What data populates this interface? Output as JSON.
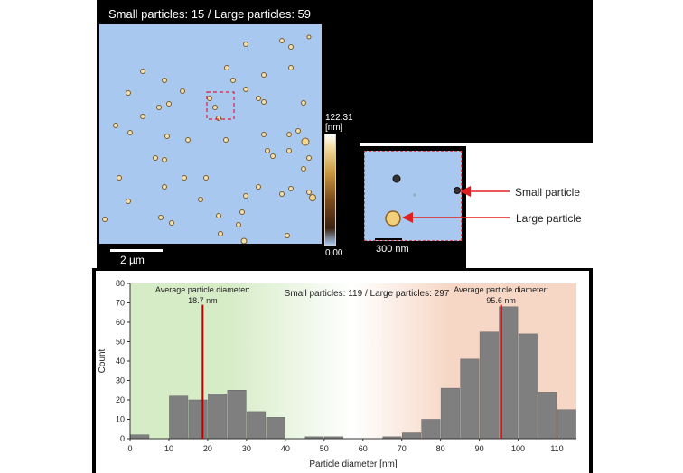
{
  "afm": {
    "title": "Small particles: 15 / Large particles: 59",
    "scale_label": "2 µm",
    "colorbar_max": "122.31",
    "colorbar_unit": "[nm]",
    "colorbar_min": "0.00"
  },
  "zoom": {
    "scale_label": "300 nm",
    "small_label": "Small particle",
    "large_label": "Large particle"
  },
  "colors": {
    "arrow": "#e02020",
    "bar": "#7f7f7f",
    "mean_line": "#c00000",
    "green_band": "#d6ecc6",
    "orange_band": "#f6d6c4",
    "substrate": "#a8c8f0"
  },
  "chart_data": {
    "type": "bar",
    "title": "Small particles: 119 / Large particles: 297",
    "xlabel": "Particle diameter [nm]",
    "ylabel": "Count",
    "xlim": [
      0,
      115
    ],
    "ylim": [
      0,
      80
    ],
    "x_ticks": [
      0,
      10,
      20,
      30,
      40,
      50,
      60,
      70,
      80,
      90,
      100,
      110
    ],
    "y_ticks": [
      0,
      10,
      20,
      30,
      40,
      50,
      60,
      70,
      80
    ],
    "bin_width": 5,
    "bins": [
      {
        "x": 0,
        "count": 2
      },
      {
        "x": 5,
        "count": 0
      },
      {
        "x": 10,
        "count": 22
      },
      {
        "x": 15,
        "count": 20
      },
      {
        "x": 20,
        "count": 23
      },
      {
        "x": 25,
        "count": 25
      },
      {
        "x": 30,
        "count": 14
      },
      {
        "x": 35,
        "count": 11
      },
      {
        "x": 40,
        "count": 0
      },
      {
        "x": 45,
        "count": 1
      },
      {
        "x": 50,
        "count": 1
      },
      {
        "x": 55,
        "count": 0
      },
      {
        "x": 60,
        "count": 0
      },
      {
        "x": 65,
        "count": 1
      },
      {
        "x": 70,
        "count": 3
      },
      {
        "x": 75,
        "count": 10
      },
      {
        "x": 80,
        "count": 26
      },
      {
        "x": 85,
        "count": 41
      },
      {
        "x": 90,
        "count": 55
      },
      {
        "x": 95,
        "count": 68
      },
      {
        "x": 100,
        "count": 54
      },
      {
        "x": 105,
        "count": 24
      },
      {
        "x": 110,
        "count": 15
      }
    ],
    "annotations": [
      {
        "label": "Average particle diameter:",
        "value_label": "18.7 nm",
        "x": 18.7
      },
      {
        "label": "Average particle diameter:",
        "value_label": "95.6 nm",
        "x": 95.6
      }
    ]
  }
}
